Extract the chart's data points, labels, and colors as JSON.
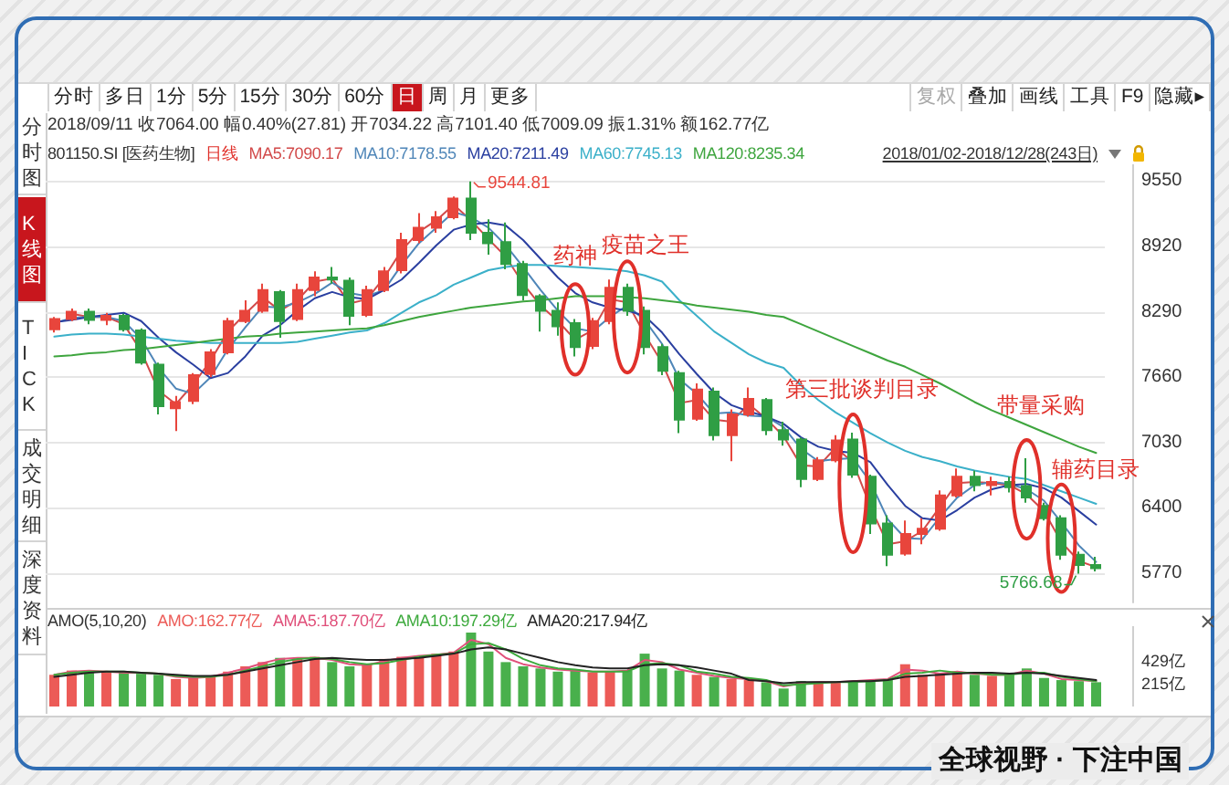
{
  "chart_data": [
    {
      "type": "other",
      "annotations": [
        "分时",
        "多日",
        "1分",
        "5分",
        "15分",
        "30分",
        "60分",
        "日",
        "周",
        "月",
        "更多",
        "复权",
        "叠加",
        "画线",
        "工具",
        "F9",
        "隐藏▸",
        "分时图",
        "K线图",
        "TICK",
        "成交明细",
        "深度资料",
        "全球视野 · 下注中国"
      ]
    },
    {
      "type": "candlestick",
      "title": "801150.SI [医药生物]",
      "subtitle": "2018/09/11 收7064.00 幅0.40%(27.81) 开7034.22 高7101.40 低7009.09 振1.31% 额162.77亿",
      "categories": [
        null,
        null,
        null,
        null,
        null,
        null,
        null,
        null,
        null,
        null,
        null,
        null,
        null,
        null,
        null,
        null,
        null,
        null,
        null,
        null,
        null,
        null,
        null,
        null,
        null,
        null,
        null,
        null,
        null,
        null,
        null,
        null,
        null,
        null,
        null,
        null,
        null,
        null,
        null,
        null,
        null,
        null,
        null,
        null,
        null,
        null,
        null,
        null,
        null,
        null,
        null,
        null,
        null,
        null,
        null,
        null,
        null,
        null,
        null,
        null,
        null
      ],
      "ohlc": [
        [
          8120,
          8240,
          8090,
          8220
        ],
        [
          8220,
          8320,
          8200,
          8290
        ],
        [
          8290,
          8320,
          8170,
          8210
        ],
        [
          8210,
          8280,
          8160,
          8250
        ],
        [
          8250,
          8270,
          8100,
          8120
        ],
        [
          8110,
          8130,
          7780,
          7800
        ],
        [
          7780,
          7800,
          7300,
          7380
        ],
        [
          7360,
          7480,
          7140,
          7420
        ],
        [
          7430,
          7700,
          7400,
          7680
        ],
        [
          7690,
          7930,
          7660,
          7900
        ],
        [
          7900,
          8230,
          7880,
          8200
        ],
        [
          8200,
          8400,
          8180,
          8300
        ],
        [
          8300,
          8560,
          8280,
          8500
        ],
        [
          8480,
          8500,
          8040,
          8200
        ],
        [
          8220,
          8560,
          8200,
          8500
        ],
        [
          8500,
          8680,
          8440,
          8620
        ],
        [
          8620,
          8720,
          8560,
          8600
        ],
        [
          8590,
          8620,
          8160,
          8250
        ],
        [
          8260,
          8540,
          8240,
          8500
        ],
        [
          8500,
          8720,
          8480,
          8680
        ],
        [
          8690,
          9050,
          8660,
          8980
        ],
        [
          8980,
          9240,
          8950,
          9100
        ],
        [
          9100,
          9260,
          9050,
          9200
        ],
        [
          9200,
          9400,
          9180,
          9380
        ],
        [
          9380,
          9544.81,
          8980,
          9050
        ],
        [
          9050,
          9180,
          8840,
          8950
        ],
        [
          8960,
          9150,
          8700,
          8750
        ],
        [
          8750,
          8780,
          8400,
          8450
        ],
        [
          8440,
          8460,
          8100,
          8300
        ],
        [
          8300,
          8380,
          8060,
          8150
        ],
        [
          8180,
          8220,
          7860,
          7950
        ],
        [
          7960,
          8230,
          7930,
          8200
        ],
        [
          8200,
          8600,
          8170,
          8520
        ],
        [
          8520,
          8560,
          8250,
          8300
        ],
        [
          8300,
          8340,
          7880,
          7950
        ],
        [
          7950,
          7980,
          7680,
          7720
        ],
        [
          7700,
          7720,
          7120,
          7250
        ],
        [
          7260,
          7600,
          7240,
          7540
        ],
        [
          7520,
          7560,
          7050,
          7100
        ],
        [
          7100,
          7350,
          6850,
          7300
        ],
        [
          7300,
          7560,
          7280,
          7450
        ],
        [
          7440,
          7460,
          7100,
          7150
        ],
        [
          7150,
          7230,
          7000,
          7060
        ],
        [
          7060,
          7080,
          6600,
          6680
        ],
        [
          6680,
          6890,
          6660,
          6860
        ],
        [
          6860,
          7100,
          6840,
          7050
        ],
        [
          7060,
          7125,
          6690,
          6720
        ],
        [
          6700,
          6720,
          6150,
          6250
        ],
        [
          6250,
          6330,
          5840,
          5950
        ],
        [
          5960,
          6280,
          5940,
          6150
        ],
        [
          6150,
          6300,
          6050,
          6200
        ],
        [
          6200,
          6570,
          6180,
          6520
        ],
        [
          6520,
          6780,
          6500,
          6700
        ],
        [
          6700,
          6760,
          6560,
          6620
        ],
        [
          6620,
          6700,
          6520,
          6650
        ],
        [
          6650,
          6700,
          6550,
          6600
        ],
        [
          6610,
          6880,
          6450,
          6500
        ],
        [
          6420,
          6450,
          6280,
          6300
        ],
        [
          6300,
          6330,
          5900,
          5950
        ],
        [
          5950,
          5980,
          5766.68,
          5850
        ],
        [
          5850,
          5930,
          5790,
          5820
        ]
      ],
      "colors": [
        "#e8453c",
        "#e8453c",
        "#2f9e44",
        "#e8453c",
        "#2f9e44",
        "#2f9e44",
        "#2f9e44",
        "#e8453c",
        "#e8453c",
        "#e8453c",
        "#e8453c",
        "#e8453c",
        "#e8453c",
        "#2f9e44",
        "#e8453c",
        "#e8453c",
        "#2f9e44",
        "#2f9e44",
        "#e8453c",
        "#e8453c",
        "#e8453c",
        "#e8453c",
        "#e8453c",
        "#e8453c",
        "#2f9e44",
        "#2f9e44",
        "#2f9e44",
        "#2f9e44",
        "#2f9e44",
        "#2f9e44",
        "#2f9e44",
        "#e8453c",
        "#e8453c",
        "#2f9e44",
        "#2f9e44",
        "#2f9e44",
        "#2f9e44",
        "#e8453c",
        "#2f9e44",
        "#e8453c",
        "#e8453c",
        "#2f9e44",
        "#2f9e44",
        "#2f9e44",
        "#e8453c",
        "#e8453c",
        "#2f9e44",
        "#2f9e44",
        "#2f9e44",
        "#e8453c",
        "#e8453c",
        "#e8453c",
        "#e8453c",
        "#2f9e44",
        "#e8453c",
        "#2f9e44",
        "#2f9e44",
        "#2f9e44",
        "#2f9e44",
        "#2f9e44",
        "#2f9e44"
      ],
      "ylim": [
        5490,
        9710
      ],
      "yticks": [
        5770,
        6400,
        7030,
        7660,
        8290,
        8920,
        9550
      ],
      "grid": "y",
      "tick_labels": "y",
      "legend": "top",
      "series": [
        {
          "name": "MA5:7090.17",
          "type": "line",
          "color": "#d24a4a",
          "values": [
            null,
            8270,
            8240,
            8240,
            8170,
            7910,
            7530,
            7400,
            7590,
            7820,
            8100,
            8270,
            8430,
            8300,
            8400,
            8580,
            8610,
            8370,
            8410,
            8620,
            8880,
            9060,
            9170,
            9320,
            9170,
            8990,
            8820,
            8560,
            8350,
            8200,
            8020,
            8110,
            8410,
            8380,
            8070,
            7800,
            7410,
            7440,
            7250,
            7230,
            7400,
            7260,
            7090,
            6810,
            6800,
            6980,
            6840,
            6410,
            6050,
            6080,
            6180,
            6410,
            6640,
            6650,
            6640,
            6620,
            6530,
            6370,
            6070,
            5890,
            5830
          ]
        },
        {
          "name": "MA10:7178.55",
          "type": "line",
          "color": "#4f86b8",
          "values": [
            8180,
            8230,
            8240,
            8240,
            8200,
            8030,
            7750,
            7550,
            7500,
            7660,
            7930,
            8140,
            8340,
            8330,
            8380,
            8460,
            8570,
            8470,
            8440,
            8500,
            8740,
            8950,
            9100,
            9250,
            9200,
            9100,
            8930,
            8720,
            8500,
            8300,
            8130,
            8100,
            8240,
            8350,
            8210,
            7980,
            7640,
            7500,
            7310,
            7320,
            7290,
            7280,
            7180,
            6970,
            6850,
            6870,
            6880,
            6650,
            6290,
            6110,
            6100,
            6310,
            6500,
            6620,
            6650,
            6630,
            6580,
            6470,
            6260,
            6040,
            5880
          ]
        },
        {
          "name": "MA20:7211.49",
          "type": "line",
          "color": "#2a3fa0",
          "values": [
            8190,
            8210,
            8240,
            8260,
            8280,
            8200,
            8040,
            7900,
            7780,
            7650,
            7700,
            7860,
            8060,
            8160,
            8300,
            8420,
            8480,
            8430,
            8410,
            8500,
            8600,
            8760,
            8930,
            9080,
            9130,
            9150,
            9120,
            8980,
            8800,
            8620,
            8470,
            8380,
            8330,
            8300,
            8250,
            8090,
            7880,
            7690,
            7510,
            7390,
            7330,
            7280,
            7210,
            7080,
            6990,
            6950,
            6930,
            6840,
            6620,
            6420,
            6300,
            6280,
            6380,
            6500,
            6580,
            6620,
            6630,
            6590,
            6500,
            6370,
            6240
          ]
        },
        {
          "name": "MA60:7745.13",
          "type": "line",
          "color": "#3bb0c9",
          "values": [
            8050,
            8070,
            8080,
            8080,
            8070,
            8050,
            8030,
            8010,
            8000,
            7990,
            7990,
            7990,
            7990,
            7990,
            8000,
            8030,
            8060,
            8090,
            8110,
            8180,
            8280,
            8380,
            8450,
            8550,
            8620,
            8690,
            8720,
            8740,
            8740,
            8730,
            8720,
            8710,
            8700,
            8680,
            8640,
            8580,
            8400,
            8250,
            8100,
            7990,
            7880,
            7800,
            7750,
            7580,
            7440,
            7320,
            7220,
            7120,
            7030,
            6950,
            6890,
            6850,
            6800,
            6760,
            6730,
            6700,
            6680,
            6620,
            6560,
            6500,
            6440
          ]
        },
        {
          "name": "MA120:8235.34",
          "type": "line",
          "color": "#3ea53e",
          "values": [
            7860,
            7870,
            7890,
            7900,
            7920,
            7930,
            7950,
            7970,
            7990,
            8010,
            8030,
            8050,
            8060,
            8080,
            8090,
            8100,
            8110,
            8120,
            8130,
            8160,
            8200,
            8240,
            8270,
            8300,
            8330,
            8350,
            8370,
            8390,
            8400,
            8420,
            8440,
            8440,
            8440,
            8430,
            8420,
            8400,
            8380,
            8350,
            8330,
            8310,
            8290,
            8260,
            8240,
            8170,
            8100,
            8030,
            7960,
            7890,
            7820,
            7760,
            7680,
            7600,
            7510,
            7420,
            7340,
            7270,
            7200,
            7130,
            7060,
            6990,
            6930
          ]
        }
      ],
      "annotations": [
        "日线",
        "2018/01/02-2018/12/28(243日)",
        "9544.81",
        "5766.68",
        "药神",
        "疫苗之王",
        "第三批谈判目录",
        "带量采购",
        "辅药目录"
      ]
    },
    {
      "type": "bar",
      "title": "AMO(5,10,20)",
      "categories": [
        null,
        null,
        null,
        null,
        null,
        null,
        null,
        null,
        null,
        null,
        null,
        null,
        null,
        null,
        null,
        null,
        null,
        null,
        null,
        null,
        null,
        null,
        null,
        null,
        null,
        null,
        null,
        null,
        null,
        null,
        null,
        null,
        null,
        null,
        null,
        null,
        null,
        null,
        null,
        null,
        null,
        null,
        null,
        null,
        null,
        null,
        null,
        null,
        null,
        null,
        null,
        null,
        null,
        null,
        null,
        null,
        null,
        null,
        null,
        null,
        null
      ],
      "ylim": [
        0,
        760
      ],
      "yticks": [
        {
          "value": 215,
          "label": "215亿"
        },
        {
          "value": 429,
          "label": "429亿"
        }
      ],
      "tick_labels": "y",
      "legend": "top",
      "series": [
        {
          "name": "AMO:162.77亿",
          "color": "#ec5b57",
          "colors": [
            "#ec5b57",
            "#ec5b57",
            "#49b04c",
            "#ec5b57",
            "#49b04c",
            "#49b04c",
            "#49b04c",
            "#ec5b57",
            "#ec5b57",
            "#ec5b57",
            "#ec5b57",
            "#ec5b57",
            "#ec5b57",
            "#49b04c",
            "#ec5b57",
            "#ec5b57",
            "#49b04c",
            "#49b04c",
            "#ec5b57",
            "#ec5b57",
            "#ec5b57",
            "#ec5b57",
            "#ec5b57",
            "#ec5b57",
            "#49b04c",
            "#49b04c",
            "#49b04c",
            "#49b04c",
            "#49b04c",
            "#49b04c",
            "#49b04c",
            "#ec5b57",
            "#ec5b57",
            "#49b04c",
            "#49b04c",
            "#49b04c",
            "#49b04c",
            "#ec5b57",
            "#49b04c",
            "#ec5b57",
            "#ec5b57",
            "#49b04c",
            "#49b04c",
            "#49b04c",
            "#ec5b57",
            "#ec5b57",
            "#49b04c",
            "#49b04c",
            "#49b04c",
            "#ec5b57",
            "#ec5b57",
            "#ec5b57",
            "#ec5b57",
            "#49b04c",
            "#ec5b57",
            "#49b04c",
            "#49b04c",
            "#49b04c",
            "#49b04c",
            "#49b04c",
            "#49b04c"
          ],
          "values": [
            300,
            340,
            330,
            320,
            320,
            310,
            300,
            260,
            270,
            290,
            330,
            380,
            420,
            460,
            450,
            470,
            420,
            380,
            400,
            450,
            470,
            480,
            500,
            520,
            700,
            520,
            420,
            380,
            360,
            330,
            340,
            320,
            330,
            340,
            500,
            360,
            340,
            300,
            280,
            260,
            250,
            230,
            170,
            240,
            220,
            230,
            240,
            250,
            260,
            400,
            300,
            320,
            330,
            300,
            290,
            310,
            360,
            270,
            250,
            240,
            230
          ]
        },
        {
          "name": "AMA5:187.70亿",
          "type": "line",
          "color": "#e0507a",
          "values": [
            300,
            330,
            340,
            330,
            320,
            320,
            310,
            280,
            270,
            280,
            320,
            360,
            410,
            450,
            460,
            460,
            440,
            400,
            390,
            430,
            460,
            480,
            490,
            510,
            630,
            590,
            460,
            400,
            370,
            350,
            340,
            330,
            330,
            340,
            440,
            420,
            350,
            320,
            290,
            270,
            260,
            240,
            190,
            220,
            230,
            230,
            240,
            250,
            260,
            350,
            340,
            310,
            330,
            310,
            300,
            300,
            340,
            310,
            260,
            250,
            240
          ]
        },
        {
          "name": "AMA10:197.29亿",
          "type": "line",
          "color": "#3daa3d",
          "values": [
            300,
            320,
            330,
            330,
            330,
            320,
            310,
            290,
            280,
            280,
            300,
            340,
            380,
            420,
            450,
            460,
            450,
            420,
            400,
            410,
            440,
            470,
            490,
            500,
            590,
            600,
            540,
            450,
            390,
            360,
            350,
            330,
            330,
            330,
            400,
            410,
            390,
            330,
            310,
            280,
            270,
            250,
            200,
            210,
            220,
            230,
            230,
            240,
            250,
            310,
            320,
            340,
            320,
            320,
            300,
            300,
            320,
            320,
            280,
            260,
            240
          ]
        },
        {
          "name": "AMA20:217.94亿",
          "type": "line",
          "color": "#222222",
          "values": [
            280,
            300,
            320,
            330,
            330,
            320,
            310,
            300,
            290,
            290,
            300,
            330,
            360,
            390,
            420,
            450,
            460,
            450,
            440,
            440,
            450,
            460,
            480,
            500,
            540,
            560,
            540,
            500,
            460,
            420,
            390,
            370,
            360,
            360,
            390,
            400,
            390,
            370,
            340,
            310,
            250,
            240,
            220,
            230,
            230,
            230,
            240,
            240,
            250,
            280,
            290,
            300,
            310,
            320,
            320,
            310,
            320,
            310,
            290,
            270,
            250
          ]
        }
      ]
    }
  ]
}
